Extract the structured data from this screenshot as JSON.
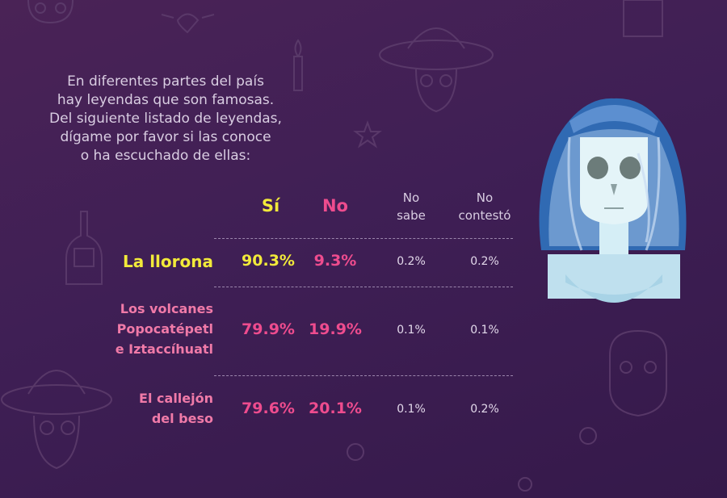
{
  "question": "En diferentes partes del país\nhay leyendas que son famosas.\nDel siguiente listado de leyendas,\ndígame por favor si las conoce\no ha escuchado de ellas:",
  "colors": {
    "yellow": "#f2ea3a",
    "pink": "#ee4c8e",
    "label_pink": "#f07aa8",
    "background": "#3f1f55"
  },
  "chart_data": {
    "type": "table",
    "columns": [
      "Sí",
      "No",
      "No\nsabe",
      "No\ncontestó"
    ],
    "rows": [
      {
        "label": "La llorona",
        "values": [
          "90.3%",
          "9.3%",
          "0.2%",
          "0.2%"
        ]
      },
      {
        "label": "Los volcanes\nPopocatépetl\ne Iztaccíhuatl",
        "values": [
          "79.9%",
          "19.9%",
          "0.1%",
          "0.1%"
        ]
      },
      {
        "label": "El callejón\ndel beso",
        "values": [
          "79.6%",
          "20.1%",
          "0.1%",
          "0.2%"
        ]
      }
    ]
  }
}
